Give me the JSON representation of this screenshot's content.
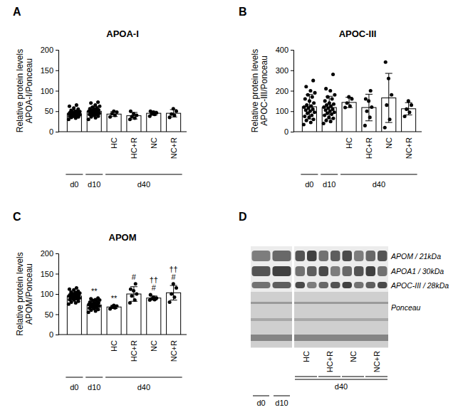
{
  "chart_data": [
    {
      "type": "bar",
      "panel_label": "A",
      "title": "APOA-I",
      "y_label": [
        "Relative protein levels",
        "APOA-I/Ponceau"
      ],
      "categories": [
        "d0",
        "d10",
        "HC",
        "HC+R",
        "NC",
        "NC+R"
      ],
      "groups": [
        {
          "label": "d40",
          "span": [
            2,
            5
          ]
        }
      ],
      "ylim": [
        0,
        200
      ],
      "yticks": [
        0,
        50,
        100,
        150,
        200
      ],
      "marker": "circle",
      "series": [
        {
          "color": "#ffffff",
          "values": [
            44,
            50,
            43,
            39,
            45,
            45
          ],
          "errors": [
            9,
            11,
            6,
            8,
            5,
            9
          ],
          "points": [
            [
              30,
              33,
              35,
              36,
              38,
              38,
              40,
              40,
              41,
              42,
              42,
              43,
              43,
              44,
              44,
              45,
              45,
              46,
              47,
              48,
              48,
              49,
              50,
              52,
              55,
              58,
              62,
              65
            ],
            [
              30,
              34,
              36,
              38,
              40,
              42,
              43,
              44,
              45,
              46,
              47,
              48,
              49,
              50,
              51,
              52,
              53,
              55,
              56,
              58,
              60,
              62,
              65,
              70,
              72
            ],
            [
              36,
              40,
              44,
              48,
              50
            ],
            [
              30,
              33,
              37,
              40,
              44,
              50
            ],
            [
              38,
              42,
              44,
              46,
              48,
              50
            ],
            [
              35,
              40,
              43,
              50,
              56
            ]
          ]
        }
      ]
    },
    {
      "type": "bar",
      "panel_label": "B",
      "title": "APOC-III",
      "y_label": [
        "Relative protein levels",
        "APOC-III/Ponceau"
      ],
      "categories": [
        "d0",
        "d10",
        "HC",
        "HC+R",
        "NC",
        "NC+R"
      ],
      "groups": [
        {
          "label": "d40",
          "span": [
            2,
            5
          ]
        }
      ],
      "ylim": [
        0,
        400
      ],
      "yticks": [
        0,
        100,
        200,
        300,
        400
      ],
      "marker": "circle",
      "series": [
        {
          "color": "#ffffff",
          "values": [
            122,
            118,
            143,
            118,
            165,
            112
          ],
          "errors": [
            60,
            55,
            25,
            65,
            120,
            30
          ],
          "points": [
            [
              35,
              45,
              55,
              60,
              70,
              75,
              80,
              90,
              95,
              100,
              105,
              110,
              115,
              120,
              125,
              130,
              140,
              150,
              160,
              170,
              180,
              190,
              200,
              220,
              250
            ],
            [
              40,
              50,
              55,
              65,
              70,
              80,
              85,
              90,
              95,
              100,
              105,
              110,
              115,
              120,
              125,
              130,
              135,
              140,
              150,
              160,
              170,
              180,
              200,
              210,
              280
            ],
            [
              118,
              125,
              140,
              160,
              170
            ],
            [
              30,
              70,
              100,
              120,
              150,
              160,
              200
            ],
            [
              20,
              60,
              130,
              180,
              260,
              340
            ],
            [
              75,
              95,
              110,
              130,
              150
            ]
          ]
        }
      ]
    },
    {
      "type": "bar",
      "panel_label": "C",
      "title": "APOM",
      "y_label": [
        "Relative protein levels",
        "APOM/Ponceau"
      ],
      "categories": [
        "d0",
        "d10",
        "HC",
        "HC+R",
        "NC",
        "NC+R"
      ],
      "groups": [
        {
          "label": "d40",
          "span": [
            2,
            5
          ]
        }
      ],
      "ylim": [
        0,
        200
      ],
      "yticks": [
        0,
        50,
        100,
        150,
        200
      ],
      "marker": "circle",
      "annotations": [
        {
          "category": 1,
          "text": [
            "**"
          ]
        },
        {
          "category": 2,
          "text": [
            "**"
          ]
        },
        {
          "category": 3,
          "text": [
            "#"
          ]
        },
        {
          "category": 4,
          "text": [
            "††",
            "#"
          ]
        },
        {
          "category": 5,
          "text": [
            "††",
            "#"
          ]
        }
      ],
      "series": [
        {
          "color": "#ffffff",
          "values": [
            95,
            73,
            68,
            100,
            90,
            103
          ],
          "errors": [
            10,
            8,
            4,
            18,
            5,
            18
          ],
          "points": [
            [
              75,
              78,
              80,
              82,
              85,
              86,
              88,
              90,
              90,
              92,
              92,
              93,
              94,
              95,
              95,
              96,
              97,
              98,
              98,
              100,
              100,
              102,
              104,
              105,
              107,
              110,
              112,
              115
            ],
            [
              55,
              58,
              60,
              62,
              64,
              65,
              66,
              68,
              70,
              70,
              72,
              72,
              73,
              74,
              75,
              76,
              78,
              78,
              80,
              82,
              84,
              85,
              86,
              88,
              90
            ],
            [
              63,
              66,
              68,
              70,
              72
            ],
            [
              78,
              85,
              95,
              100,
              108,
              112,
              125
            ],
            [
              85,
              86,
              88,
              90,
              92,
              98
            ],
            [
              80,
              92,
              100,
              115,
              125
            ]
          ]
        }
      ]
    }
  ],
  "blot": {
    "panel_label": "D",
    "bands": [
      "APOM / 21kDa",
      "APOA1 / 30kDa",
      "APOC-III / 28kDa"
    ],
    "stain": "Ponceau",
    "lanes": 10,
    "lane_labels": [
      {
        "text": "d0",
        "span": [
          0,
          0
        ]
      },
      {
        "text": "d10",
        "span": [
          1,
          1
        ]
      }
    ],
    "conditions": [
      {
        "text": "HC",
        "span": [
          2,
          3
        ]
      },
      {
        "text": "HC+R",
        "span": [
          4,
          5
        ]
      },
      {
        "text": "NC",
        "span": [
          6,
          7
        ]
      },
      {
        "text": "NC+R",
        "span": [
          8,
          9
        ]
      }
    ],
    "group": {
      "text": "d40",
      "span": [
        2,
        9
      ]
    }
  }
}
